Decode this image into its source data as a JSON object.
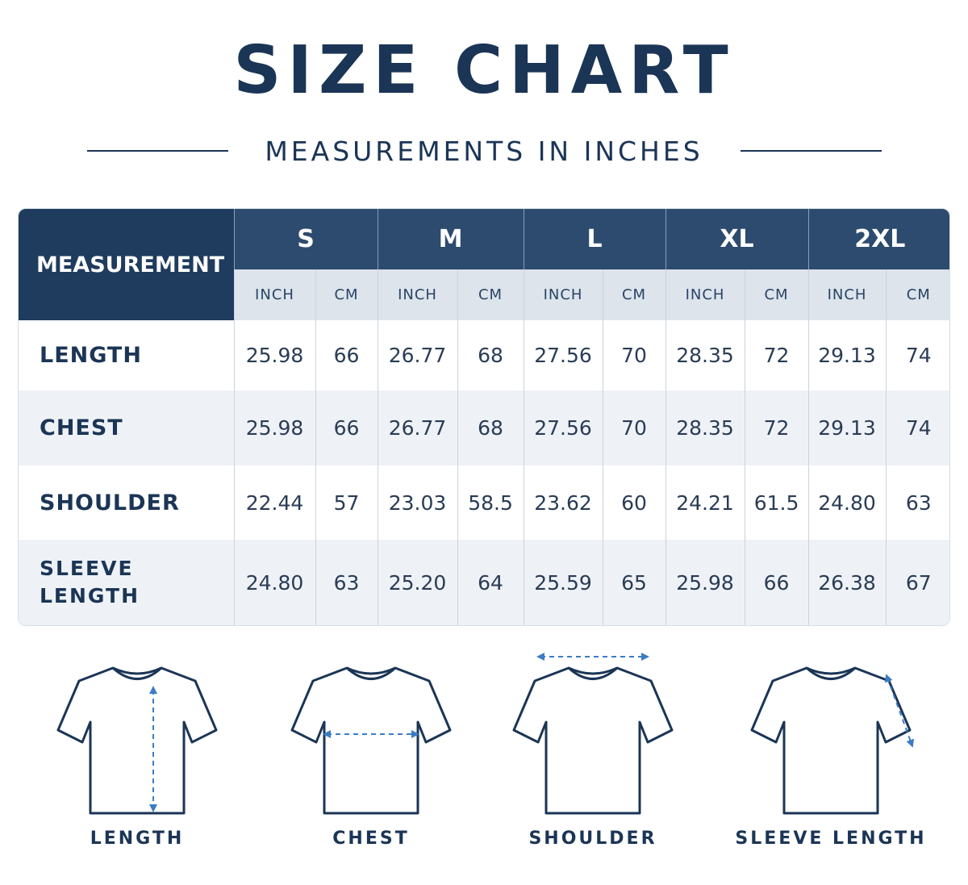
{
  "header": {
    "title": "SIZE CHART",
    "subtitle": "MEASUREMENTS IN INCHES"
  },
  "table": {
    "corner": "MEASUREMENT",
    "sizes": [
      "S",
      "M",
      "L",
      "XL",
      "2XL"
    ],
    "units": [
      "INCH",
      "CM"
    ],
    "rows": [
      {
        "label": "LENGTH",
        "values": [
          "25.98",
          "66",
          "26.77",
          "68",
          "27.56",
          "70",
          "28.35",
          "72",
          "29.13",
          "74"
        ]
      },
      {
        "label": "CHEST",
        "values": [
          "25.98",
          "66",
          "26.77",
          "68",
          "27.56",
          "70",
          "28.35",
          "72",
          "29.13",
          "74"
        ]
      },
      {
        "label": "SHOULDER",
        "values": [
          "22.44",
          "57",
          "23.03",
          "58.5",
          "23.62",
          "60",
          "24.21",
          "61.5",
          "24.80",
          "63"
        ]
      },
      {
        "label": "SLEEVE LENGTH",
        "values": [
          "24.80",
          "63",
          "25.20",
          "64",
          "25.59",
          "65",
          "25.98",
          "66",
          "26.38",
          "67"
        ]
      }
    ]
  },
  "diagrams": [
    {
      "label": "LENGTH"
    },
    {
      "label": "CHEST"
    },
    {
      "label": "SHOULDER"
    },
    {
      "label": "SLEEVE LENGTH"
    }
  ]
}
